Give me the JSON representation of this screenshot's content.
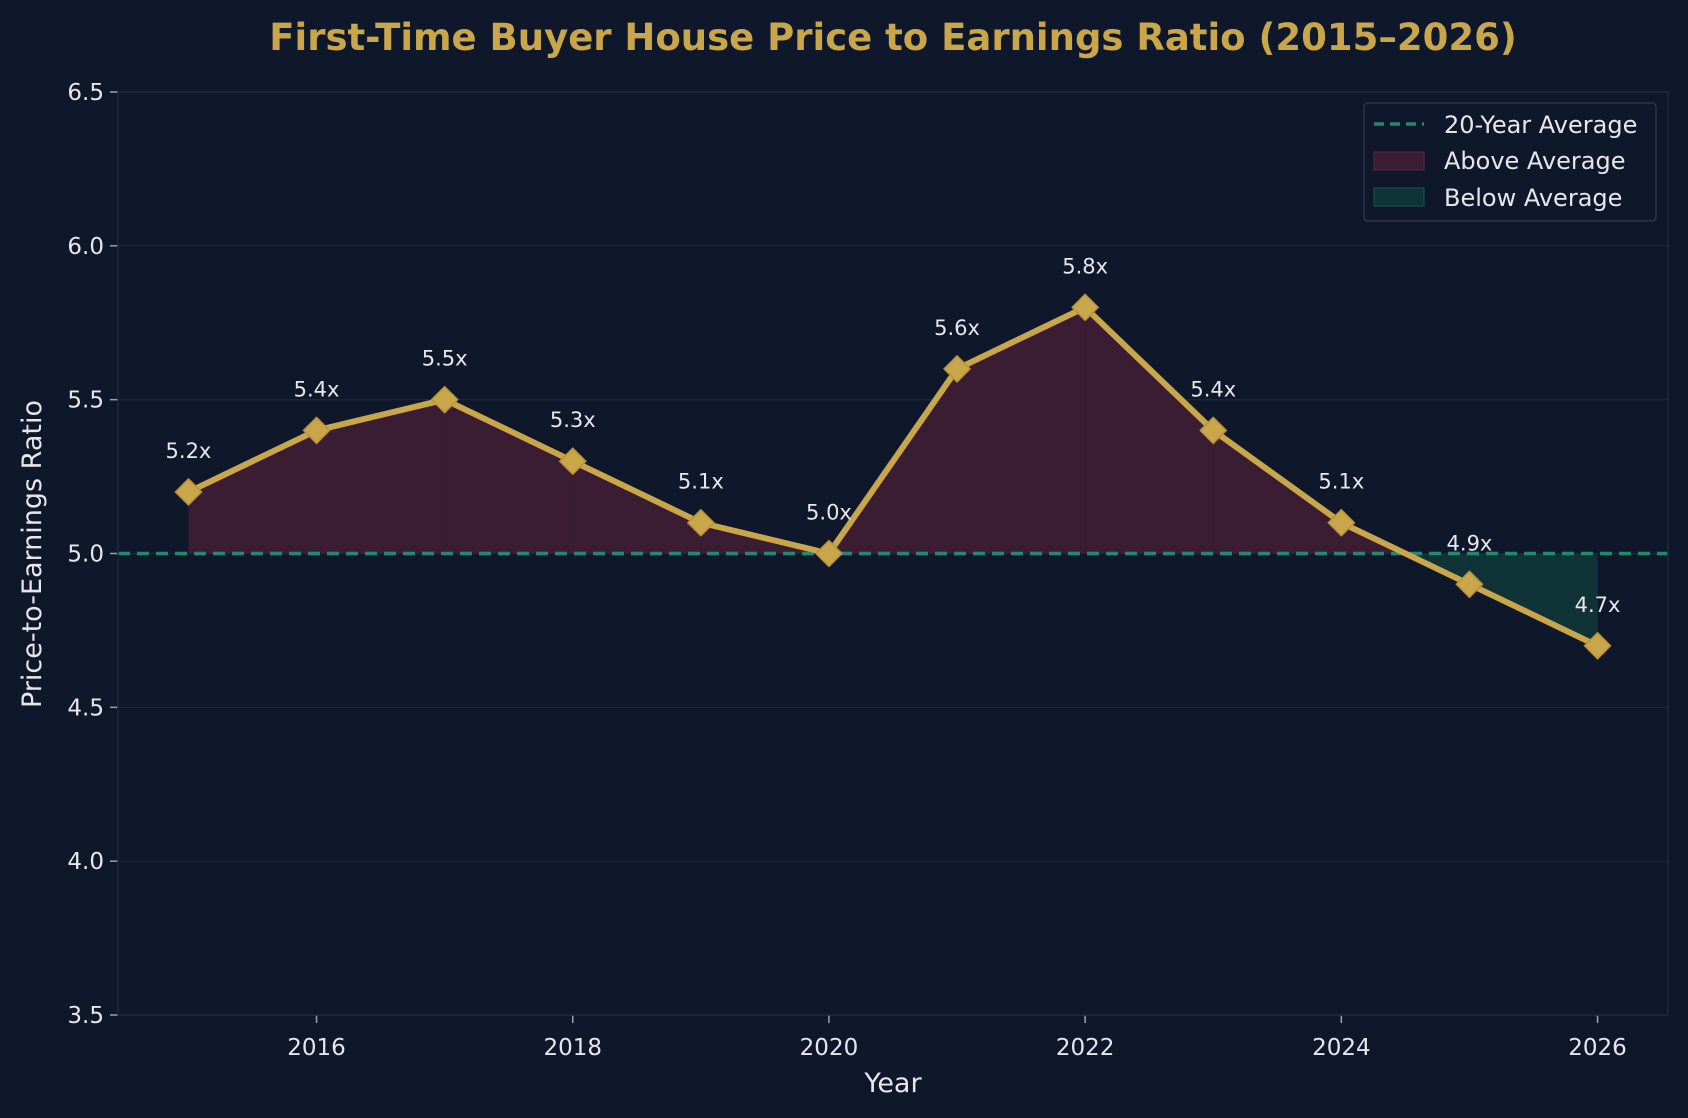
{
  "chart_data": {
    "type": "line",
    "title": "First-Time Buyer House Price to Earnings Ratio (2015–2026)",
    "xlabel": "Year",
    "ylabel": "Price-to-Earnings Ratio",
    "x": [
      2015,
      2016,
      2017,
      2018,
      2019,
      2020,
      2021,
      2022,
      2023,
      2024,
      2025,
      2026
    ],
    "series": [
      {
        "name": "",
        "values": [
          5.2,
          5.4,
          5.5,
          5.3,
          5.1,
          5.0,
          5.6,
          5.8,
          5.4,
          5.1,
          4.9,
          4.7
        ],
        "data_labels": [
          "5.2x",
          "5.4x",
          "5.5x",
          "5.3x",
          "5.1x",
          "5.0x",
          "5.6x",
          "5.8x",
          "5.4x",
          "5.1x",
          "4.9x",
          "4.7x"
        ],
        "color": "#c9a64a",
        "marker": "diamond"
      }
    ],
    "reference_line": {
      "name": "20-Year Average",
      "value": 5.0,
      "color": "#1f8a70",
      "style": "dashed"
    },
    "fills": [
      {
        "name": "Above Average",
        "color": "#3a1d33"
      },
      {
        "name": "Below Average",
        "color": "#0f3336"
      }
    ],
    "xlim": [
      2014.45,
      2026.55
    ],
    "ylim": [
      3.5,
      6.5
    ],
    "x_ticks": [
      2016,
      2018,
      2020,
      2022,
      2024,
      2026
    ],
    "y_ticks": [
      "3.5",
      "4.0",
      "4.5",
      "5.0",
      "5.5",
      "6.0",
      "6.5"
    ],
    "grid": true,
    "legend_position": "top-right",
    "legend": [
      "20-Year Average",
      "Above Average",
      "Below Average"
    ],
    "colors": {
      "background": "#0f172a",
      "line": "#c9a64a",
      "average": "#1f8a70",
      "above": "#3a1d33",
      "below": "#0f3336"
    }
  }
}
